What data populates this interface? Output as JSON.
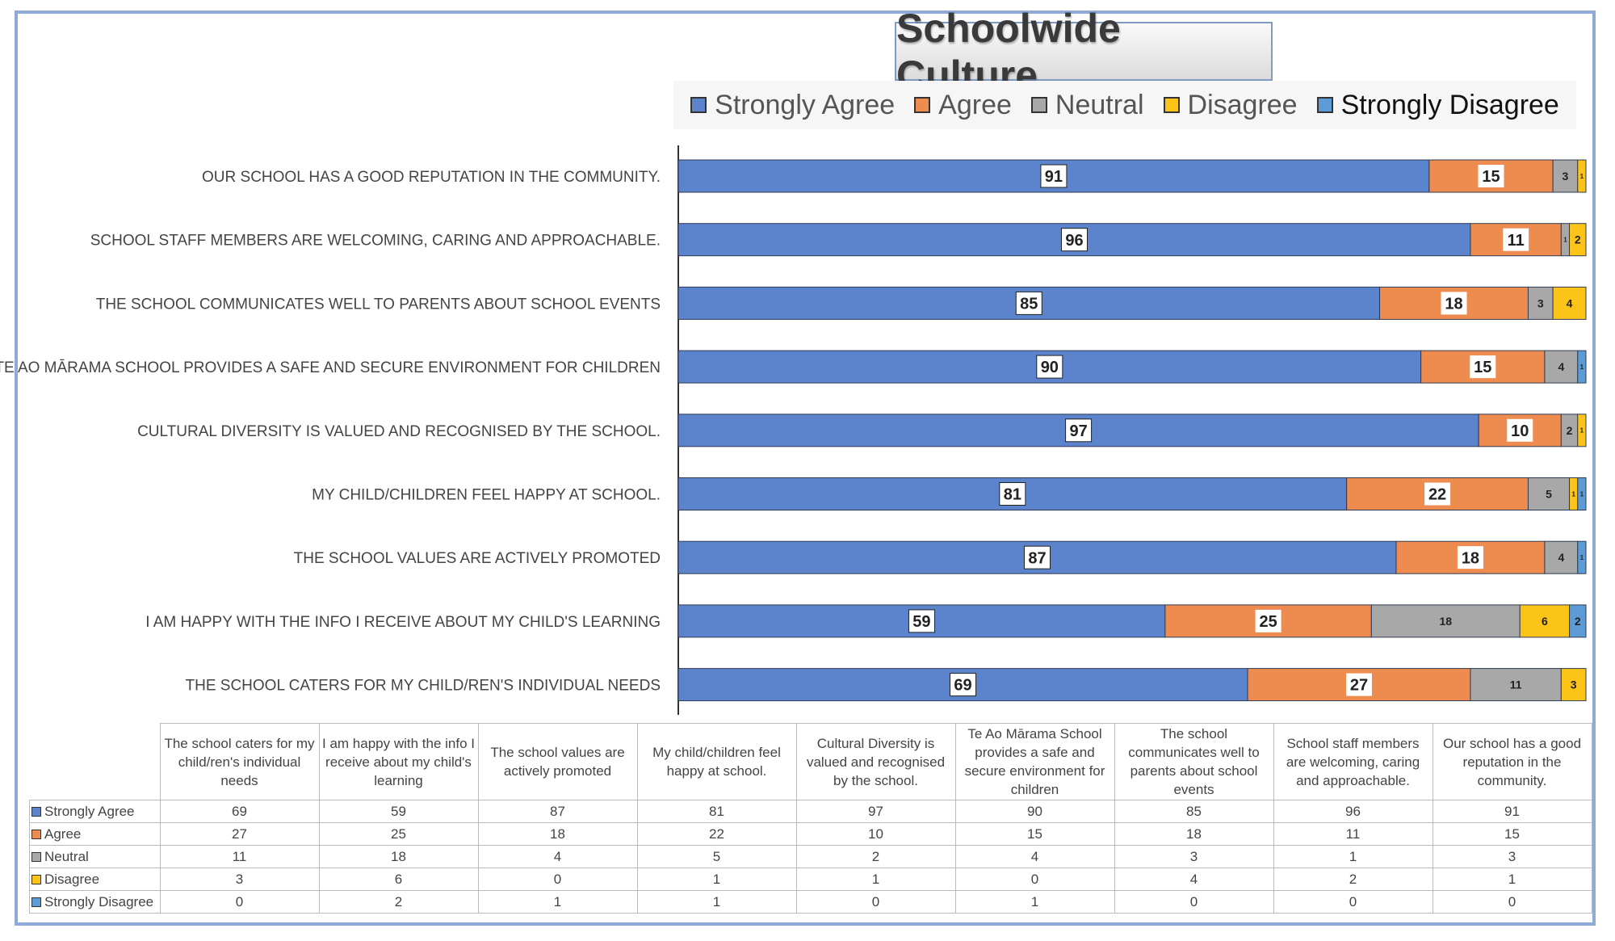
{
  "chart_data": {
    "type": "bar",
    "orientation": "horizontal",
    "stacked": true,
    "title": "Schoolwide Culture",
    "legend_position": "top",
    "categories": [
      "The school caters for my child/ren's individual needs",
      "I am happy with the info I receive about my child's learning",
      "The school values are actively promoted",
      "My child/children feel happy at school.",
      "Cultural Diversity is valued and recognised by the school.",
      "Te Ao Mārama School provides a safe and secure environment for children",
      "The school communicates well to parents about school events",
      "School staff members are welcoming, caring and approachable.",
      "Our school has a good reputation in the community."
    ],
    "series": [
      {
        "name": "Strongly Agree",
        "color": "#5b84cc",
        "values": [
          69,
          59,
          87,
          81,
          97,
          90,
          85,
          96,
          91
        ]
      },
      {
        "name": "Agree",
        "color": "#ee8c4f",
        "values": [
          27,
          25,
          18,
          22,
          10,
          15,
          18,
          11,
          15
        ]
      },
      {
        "name": "Neutral",
        "color": "#a8a8a8",
        "values": [
          11,
          18,
          4,
          5,
          2,
          4,
          3,
          1,
          3
        ]
      },
      {
        "name": "Disagree",
        "color": "#fcc419",
        "values": [
          3,
          6,
          0,
          1,
          1,
          0,
          4,
          2,
          1
        ]
      },
      {
        "name": "Strongly Disagree",
        "color": "#5c9bd6",
        "values": [
          0,
          2,
          1,
          1,
          0,
          1,
          0,
          0,
          0
        ]
      }
    ],
    "xlim": [
      0,
      110
    ],
    "data_table": true
  }
}
